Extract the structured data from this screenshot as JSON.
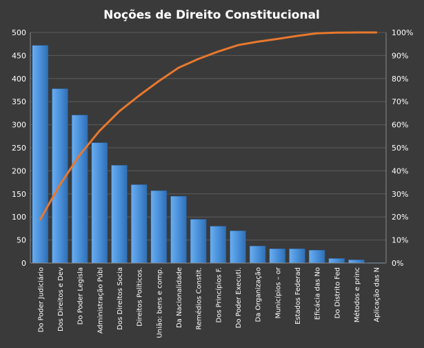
{
  "chart_data": {
    "type": "bar",
    "title": "Noções de Direito Constitucional",
    "categories": [
      "Do Poder Judiciário",
      "Dos Direitos e Dev",
      "Do Poder Legisla",
      "Administração Públ",
      "Dos Direitos Socia",
      "Direitos Políticos.",
      "União: bens e comp.",
      "Da Nacionalidade",
      "Remédios Constit.",
      "Dos Princípios F.",
      "Do Poder Executi.",
      "Da Organização",
      "Municípios – or",
      "Estados Federad",
      "Eficácia das No",
      "Do Distrito Fed",
      "Métodos e princ",
      "Aplicação das N"
    ],
    "series": [
      {
        "type": "bar",
        "axis": "left",
        "values": [
          472,
          378,
          321,
          261,
          212,
          170,
          157,
          145,
          95,
          80,
          70,
          37,
          31,
          31,
          28,
          10,
          7,
          1
        ]
      },
      {
        "type": "line",
        "axis": "right",
        "values": [
          18.9,
          34.0,
          46.9,
          57.3,
          65.8,
          72.6,
          78.9,
          84.7,
          88.5,
          91.7,
          94.5,
          96.0,
          97.2,
          98.5,
          99.6,
          99.9,
          100.0,
          100.0
        ]
      }
    ],
    "y_left": {
      "min": 0,
      "max": 500,
      "step": 50
    },
    "y_right": {
      "min": 0,
      "max": 100,
      "step": 10,
      "suffix": "%"
    },
    "grid": true,
    "legend": "none",
    "colors": {
      "background": "#3a3a3a",
      "bar": "#4a90d9",
      "line": "#e8782e",
      "grid": "#5c5c5c",
      "text": "#ffffff"
    }
  }
}
